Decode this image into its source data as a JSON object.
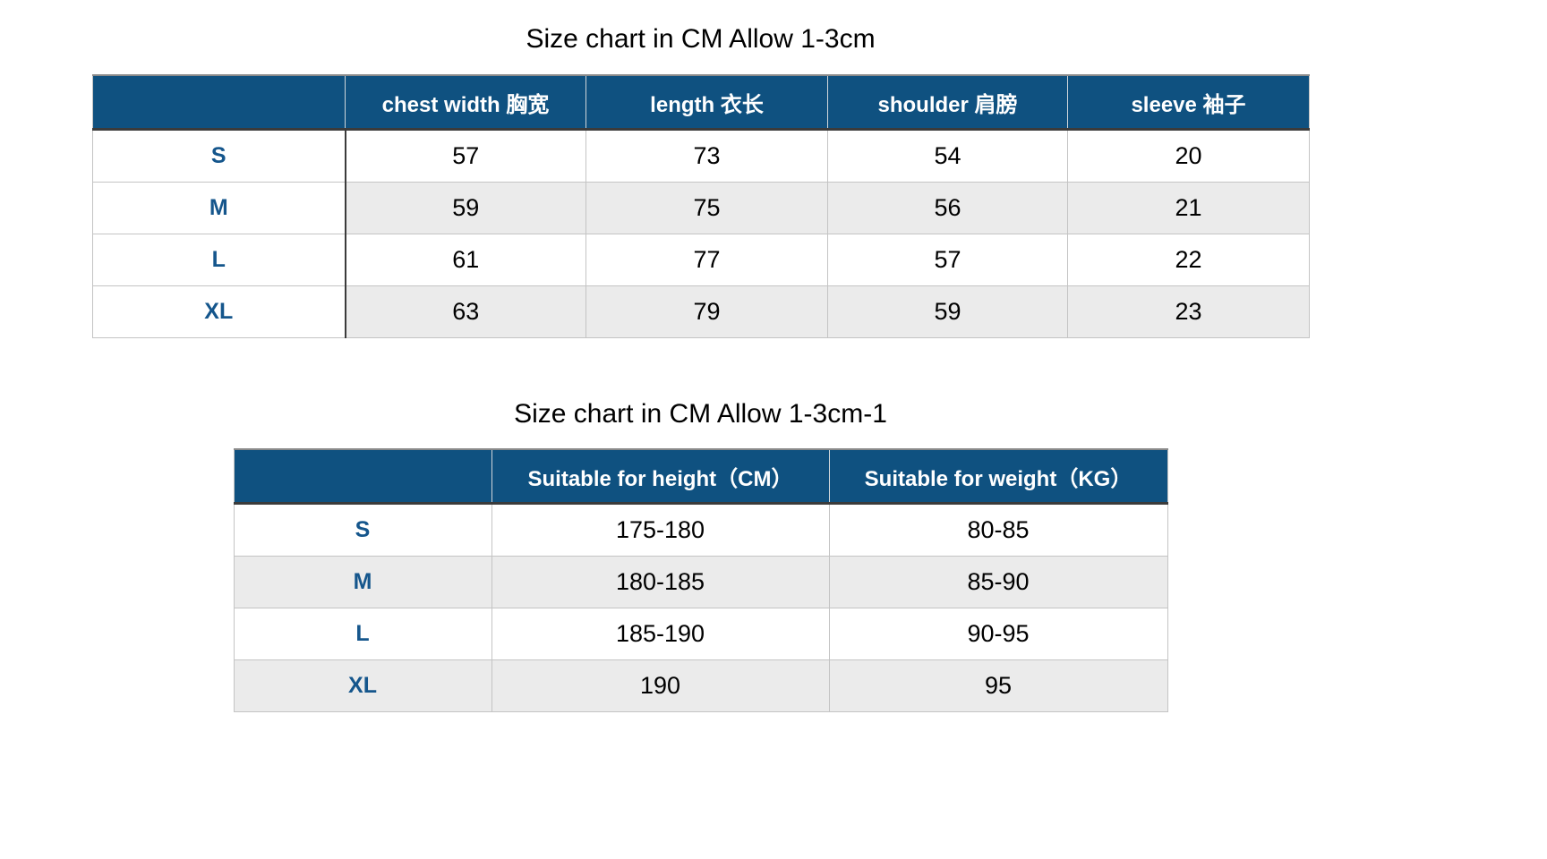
{
  "colors": {
    "header_bg": "#0f5180",
    "header_text": "#ffffff",
    "label_text": "#15568c",
    "alt_row_bg": "#ebebeb",
    "border_light": "#c4c4c4",
    "border_dark": "#3b3b3b",
    "title_text": "#000000"
  },
  "chart_data": [
    {
      "type": "table",
      "title": "Size chart in CM Allow 1-3cm",
      "columns": [
        "",
        "chest width 胸宽",
        "length 衣长",
        "shoulder 肩膀",
        "sleeve 袖子"
      ],
      "rows": [
        {
          "label": "S",
          "values": [
            57,
            73,
            54,
            20
          ]
        },
        {
          "label": "M",
          "values": [
            59,
            75,
            56,
            21
          ]
        },
        {
          "label": "L",
          "values": [
            61,
            77,
            57,
            22
          ]
        },
        {
          "label": "XL",
          "values": [
            63,
            79,
            59,
            23
          ]
        }
      ]
    },
    {
      "type": "table",
      "title": "Size chart in CM Allow 1-3cm-1",
      "columns": [
        "",
        "Suitable for height（CM）",
        "Suitable for weight（KG）"
      ],
      "rows": [
        {
          "label": "S",
          "values": [
            "175-180",
            "80-85"
          ]
        },
        {
          "label": "M",
          "values": [
            "180-185",
            "85-90"
          ]
        },
        {
          "label": "L",
          "values": [
            "185-190",
            "90-95"
          ]
        },
        {
          "label": "XL",
          "values": [
            "190",
            "95"
          ]
        }
      ]
    }
  ]
}
